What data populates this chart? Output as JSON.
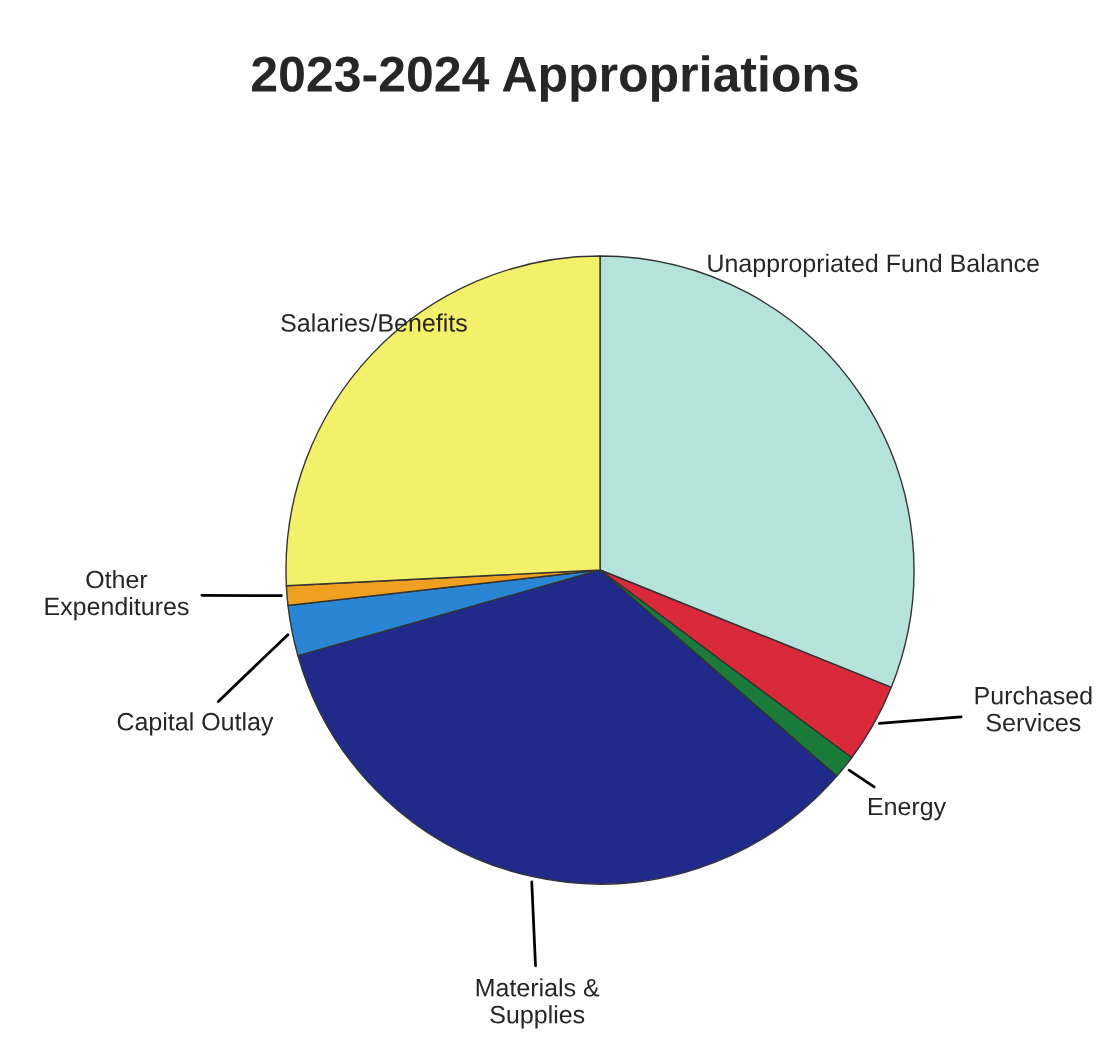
{
  "chart_data": {
    "type": "pie",
    "title": "2023-2024 Appropriations",
    "categories": [
      "Unappropriated Fund Balance",
      "Purchased\nServices",
      "Energy",
      "Materials &\nSupplies",
      "Capital Outlay",
      "Other\nExpenditures",
      "Salaries/Benefits"
    ],
    "values": [
      31.1,
      4.1,
      1.2,
      34.2,
      2.6,
      1.0,
      25.8
    ],
    "colors": [
      "#b5e3dc",
      "#d9293a",
      "#1a7a3a",
      "#1f2a8a",
      "#2a86d4",
      "#f0a020",
      "#f5f06a"
    ]
  }
}
